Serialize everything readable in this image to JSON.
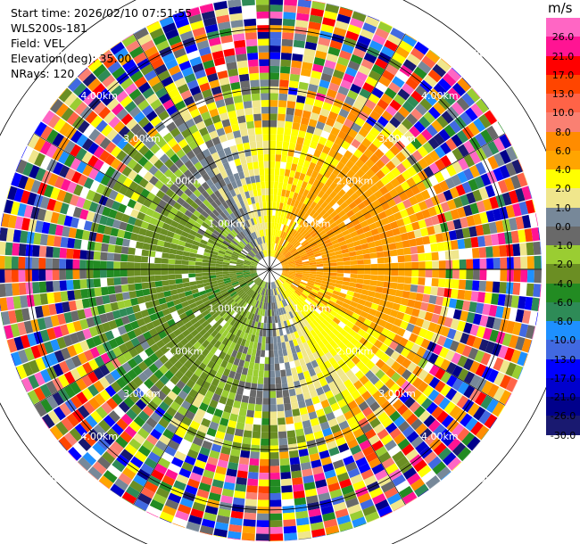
{
  "info": {
    "start_time": "Start time: 2026/02/10 07:51:55",
    "instrument": "WLS200s-181",
    "field": "Field: VEL",
    "elevation": "Elevation(deg): 35.00",
    "nrays": "NRays: 120"
  },
  "colorbar": {
    "unit": "m/s",
    "levels": [
      {
        "label": "26.0",
        "color": "#ff66c4"
      },
      {
        "label": "21.0",
        "color": "#ff1493"
      },
      {
        "label": "17.0",
        "color": "#ff0000"
      },
      {
        "label": "13.0",
        "color": "#ff4500"
      },
      {
        "label": "10.0",
        "color": "#ff6347"
      },
      {
        "label": "8.0",
        "color": "#fa8072"
      },
      {
        "label": "6.0",
        "color": "#ff8c00"
      },
      {
        "label": "4.0",
        "color": "#ffa500"
      },
      {
        "label": "2.0",
        "color": "#ffff00"
      },
      {
        "label": "1.0",
        "color": "#f0e68c"
      },
      {
        "label": "0.0",
        "color": "#778899"
      },
      {
        "label": "-1.0",
        "color": "#696969"
      },
      {
        "label": "-2.0",
        "color": "#9acd32"
      },
      {
        "label": "-4.0",
        "color": "#6b8e23"
      },
      {
        "label": "-6.0",
        "color": "#228b22"
      },
      {
        "label": "-8.0",
        "color": "#2e8b57"
      },
      {
        "label": "-10.0",
        "color": "#1e90ff"
      },
      {
        "label": "-13.0",
        "color": "#4169e1"
      },
      {
        "label": "-17.0",
        "color": "#0000ff"
      },
      {
        "label": "-21.0",
        "color": "#0000cd"
      },
      {
        "label": "-26.0",
        "color": "#00008b"
      },
      {
        "label": "-30.0",
        "color": "#191970"
      }
    ]
  },
  "ppi": {
    "max_range_km": 5.2,
    "range_rings": [
      "1.00km",
      "2.00km",
      "3.00km",
      "4.00km",
      "5.00km"
    ],
    "nrays": 120
  }
}
